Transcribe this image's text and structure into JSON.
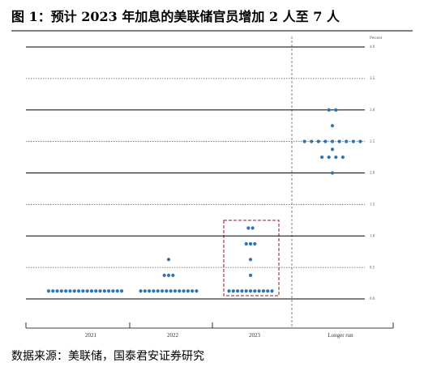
{
  "title": "图 1：预计 2023 年加息的美联储官员增加 2 人至 7 人",
  "source": "数据来源：美联储，国泰君安证券研究",
  "chart_data": {
    "type": "dot",
    "y_label": "Percent",
    "color": "#2e75b6",
    "ylim": [
      0,
      4
    ],
    "yticks": [
      {
        "value": 0,
        "label": "0.0"
      },
      0.5,
      {
        "value": 1,
        "label": "1.0"
      },
      1.5,
      {
        "value": 2,
        "label": "2.0"
      },
      2.5,
      {
        "value": 3,
        "label": "3.0"
      },
      3.5,
      {
        "value": 4,
        "label": "4.0"
      }
    ],
    "categories": [
      "2021",
      "2022",
      "2023",
      "Longer run"
    ],
    "groups": [
      [
        {
          "value": 0.125,
          "count": 18
        }
      ],
      [
        {
          "value": 0.125,
          "count": 14
        },
        {
          "value": 0.375,
          "count": 3
        },
        {
          "value": 0.625,
          "count": 1
        }
      ],
      [
        {
          "value": 0.125,
          "count": 11
        },
        {
          "value": 0.375,
          "count": 1
        },
        {
          "value": 0.625,
          "count": 1
        },
        {
          "value": 0.875,
          "count": 3
        },
        {
          "value": 1.125,
          "count": 2
        }
      ],
      [
        {
          "value": 2.0,
          "count": 1
        },
        {
          "value": 2.25,
          "count": 4
        },
        {
          "value": 2.375,
          "count": 1
        },
        {
          "value": 2.5,
          "count": 9
        },
        {
          "value": 2.75,
          "count": 1
        },
        {
          "value": 3.0,
          "count": 2
        }
      ]
    ]
  }
}
